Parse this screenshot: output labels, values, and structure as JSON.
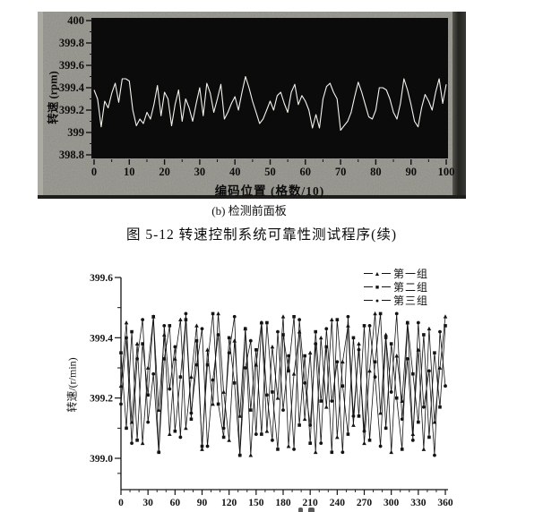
{
  "figure": {
    "subcaption_b": "(b) 检测前面板",
    "caption": "图 5-12  转速控制系统可靠性测试程序(续)"
  },
  "colors": {
    "panel_bg": "#8f8e86",
    "panel_shadow": "#2a2a28",
    "plot_bg": "#0b0b0b",
    "panel_trace": "#f3f3ec",
    "ink": "#141414"
  },
  "chart_data": [
    {
      "id": "front-panel-chart",
      "type": "line",
      "title": "",
      "xlabel": "编码位置 (格数/10)",
      "ylabel": "转速 (rpm)",
      "xlim": [
        0,
        100
      ],
      "ylim": [
        398.8,
        400
      ],
      "xticks": [
        0,
        10,
        20,
        30,
        40,
        50,
        60,
        70,
        80,
        90,
        100
      ],
      "xtick_labels": [
        "0",
        "10",
        "20",
        "30",
        "40",
        "50",
        "60",
        "70",
        "80",
        "90",
        "100"
      ],
      "yticks": [
        400,
        399.8,
        399.6,
        399.4,
        399.2,
        399,
        398.8
      ],
      "ytick_labels": [
        "400",
        "399.8",
        "399.6",
        "399.4",
        "399.2",
        "399",
        "398.8"
      ],
      "grid": false,
      "legend_position": "none",
      "x_step": 1,
      "values": [
        399.38,
        399.3,
        399.05,
        399.28,
        399.22,
        399.35,
        399.44,
        399.27,
        399.48,
        399.48,
        399.46,
        399.2,
        399.06,
        399.12,
        399.08,
        399.18,
        399.12,
        399.25,
        399.42,
        399.15,
        399.36,
        399.3,
        399.06,
        399.25,
        399.38,
        399.1,
        399.3,
        399.22,
        399.1,
        399.26,
        399.4,
        399.15,
        399.44,
        399.35,
        399.18,
        399.3,
        399.43,
        399.12,
        399.18,
        399.26,
        399.32,
        399.2,
        399.36,
        399.5,
        399.4,
        399.28,
        399.18,
        399.08,
        399.12,
        399.2,
        399.28,
        399.2,
        399.33,
        399.36,
        399.26,
        399.18,
        399.36,
        399.43,
        399.25,
        399.33,
        399.28,
        399.2,
        399.04,
        399.16,
        399.04,
        399.3,
        399.41,
        399.44,
        399.36,
        399.3,
        399.02,
        399.06,
        399.1,
        399.18,
        399.32,
        399.45,
        399.36,
        399.25,
        399.14,
        399.12,
        399.2,
        399.4,
        399.4,
        399.38,
        399.3,
        399.18,
        399.12,
        399.26,
        399.48,
        399.38,
        399.25,
        399.1,
        399.05,
        399.22,
        399.34,
        399.28,
        399.2,
        399.36,
        399.48,
        399.26,
        399.43
      ]
    },
    {
      "id": "reliability-test-chart",
      "type": "line",
      "title": "",
      "xlabel": "",
      "ylabel": "转速/(r/min)",
      "xlim": [
        0,
        360
      ],
      "ylim": [
        399.0,
        399.6
      ],
      "xticks": [
        0,
        30,
        60,
        90,
        120,
        150,
        180,
        210,
        240,
        270,
        300,
        330,
        360
      ],
      "xtick_labels": [
        "0",
        "30",
        "60",
        "90",
        "120",
        "150",
        "180",
        "210",
        "240",
        "270",
        "300",
        "330",
        "360"
      ],
      "yticks": [
        399.6,
        399.4,
        399.2,
        399.0
      ],
      "ytick_labels": [
        "399.6",
        "399.4",
        "399.2",
        "399.0"
      ],
      "grid": false,
      "legend_position": "top-right",
      "x_step": 6,
      "series": [
        {
          "name": "第一组",
          "marker": "triangle",
          "marker_glyph": "▲",
          "values": [
            399.24,
            399.45,
            399.12,
            399.38,
            399.05,
            399.3,
            399.47,
            399.16,
            399.41,
            399.08,
            399.33,
            399.46,
            399.1,
            399.27,
            399.44,
            399.03,
            399.36,
            399.18,
            399.48,
            399.22,
            399.06,
            399.39,
            399.14,
            399.43,
            399.01,
            399.31,
            399.45,
            399.09,
            399.37,
            399.2,
            399.47,
            399.04,
            399.28,
            399.42,
            399.13,
            399.35,
            399.02,
            399.4,
            399.17,
            399.46,
            399.07,
            399.32,
            399.44,
            399.11,
            399.38,
            399.05,
            399.29,
            399.48,
            399.15,
            399.41,
            399.02,
            399.34,
            399.19,
            399.45,
            399.08,
            399.36,
            399.03,
            399.43,
            399.12,
            399.3,
            399.47
          ]
        },
        {
          "name": "第二组",
          "marker": "square",
          "marker_glyph": "■",
          "values": [
            399.35,
            399.1,
            399.42,
            399.06,
            399.38,
            399.21,
            399.47,
            399.02,
            399.33,
            399.44,
            399.09,
            399.27,
            399.46,
            399.13,
            399.39,
            399.04,
            399.31,
            399.48,
            399.18,
            399.07,
            399.4,
            399.25,
            399.01,
            399.43,
            399.16,
            399.36,
            399.08,
            399.45,
            399.22,
            399.03,
            399.41,
            399.29,
            399.47,
            399.11,
            399.34,
            399.05,
            399.42,
            399.19,
            399.37,
            399.02,
            399.46,
            399.24,
            399.08,
            399.4,
            399.14,
            399.44,
            399.06,
            399.32,
            399.48,
            399.1,
            399.38,
            399.2,
            399.03,
            399.45,
            399.28,
            399.12,
            399.41,
            399.07,
            399.35,
            399.17,
            399.44
          ]
        },
        {
          "name": "第三组",
          "marker": "circle",
          "marker_glyph": "●",
          "values": [
            399.18,
            399.4,
            399.05,
            399.33,
            399.46,
            399.12,
            399.28,
            399.02,
            399.44,
            399.23,
            399.37,
            399.07,
            399.48,
            399.15,
            399.31,
            399.43,
            399.04,
            399.26,
            399.41,
            399.1,
            399.35,
            399.47,
            399.01,
            399.3,
            399.39,
            399.08,
            399.45,
            399.21,
            399.06,
            399.42,
            399.16,
            399.34,
            399.03,
            399.46,
            399.25,
            399.11,
            399.38,
            399.05,
            399.43,
            399.19,
            399.32,
            399.02,
            399.47,
            399.14,
            399.36,
            399.09,
            399.44,
            399.27,
            399.04,
            399.4,
            399.22,
            399.48,
            399.13,
            399.33,
            399.06,
            399.45,
            399.17,
            399.29,
            399.01,
            399.42,
            399.24
          ]
        }
      ]
    }
  ]
}
